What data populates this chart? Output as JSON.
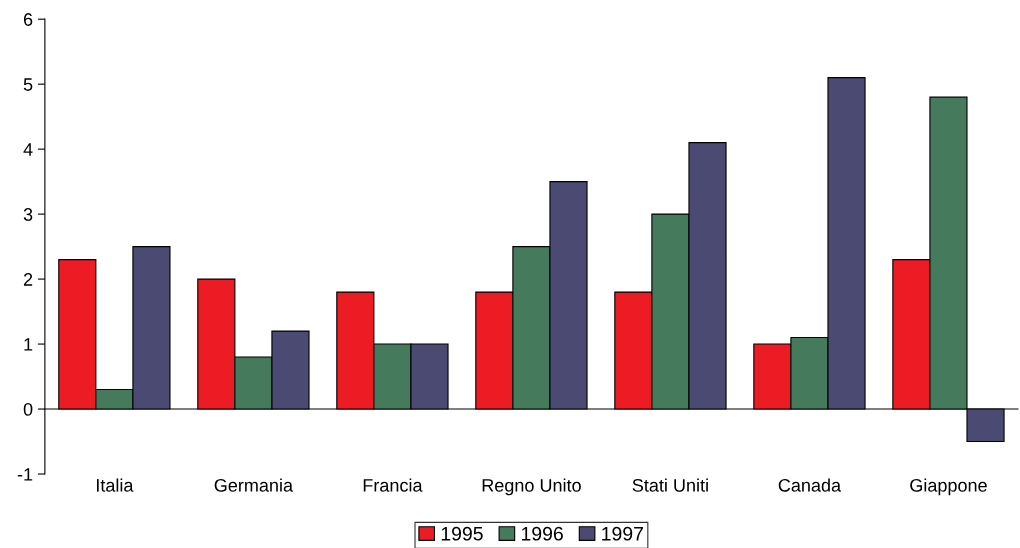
{
  "chart_data": {
    "type": "bar",
    "categories": [
      "Italia",
      "Germania",
      "Francia",
      "Regno Unito",
      "Stati Uniti",
      "Canada",
      "Giappone"
    ],
    "series": [
      {
        "name": "1995",
        "color": "#ed1c24",
        "values": [
          2.3,
          2.0,
          1.8,
          1.8,
          1.8,
          1.0,
          2.3
        ]
      },
      {
        "name": "1996",
        "color": "#467a5c",
        "values": [
          0.3,
          0.8,
          1.0,
          2.5,
          3.0,
          1.1,
          4.8
        ]
      },
      {
        "name": "1997",
        "color": "#4b4a72",
        "values": [
          2.5,
          1.2,
          1.0,
          3.5,
          4.1,
          5.1,
          -0.5
        ]
      }
    ],
    "ylim": [
      -1,
      6
    ],
    "yticks": [
      -1,
      0,
      1,
      2,
      3,
      4,
      5,
      6
    ],
    "legend": "bottom"
  }
}
